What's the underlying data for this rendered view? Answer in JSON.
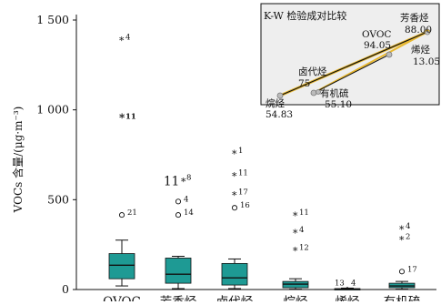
{
  "chart_data": {
    "type": "box",
    "ylabel": "VOCs 含量/(μg·m⁻³)",
    "yticks": [
      {
        "value": 0,
        "label": "0"
      },
      {
        "value": 500,
        "label": "500"
      },
      {
        "value": 1000,
        "label": "1 000"
      },
      {
        "value": 1500,
        "label": "1 500"
      }
    ],
    "ylim": [
      0,
      1500
    ],
    "box_color": "#1e9a94",
    "categories": [
      {
        "name": "OVOC",
        "whisker_low": 20,
        "q1": 60,
        "median": 135,
        "q3": 200,
        "whisker_high": 275,
        "outliers": [
          {
            "kind": "star",
            "value": 1390,
            "label": "4"
          },
          {
            "kind": "star",
            "value": 960,
            "label": "11",
            "bold": true
          },
          {
            "kind": "circle",
            "value": 415,
            "label": "21"
          }
        ]
      },
      {
        "name": "芳香烃",
        "whisker_low": 5,
        "q1": 35,
        "median": 85,
        "q3": 175,
        "whisker_high": 185,
        "outliers": [
          {
            "kind": "star",
            "value": 605,
            "label": "8",
            "prefix": "11"
          },
          {
            "kind": "circle",
            "value": 490,
            "label": "4"
          },
          {
            "kind": "circle",
            "value": 415,
            "label": "14"
          }
        ]
      },
      {
        "name": "卤代烃",
        "whisker_low": 5,
        "q1": 25,
        "median": 65,
        "q3": 145,
        "whisker_high": 170,
        "outliers": [
          {
            "kind": "star",
            "value": 760,
            "label": "1"
          },
          {
            "kind": "star",
            "value": 635,
            "label": "11"
          },
          {
            "kind": "star",
            "value": 530,
            "label": "17"
          },
          {
            "kind": "circle",
            "value": 455,
            "label": "16"
          }
        ]
      },
      {
        "name": "烷烃",
        "whisker_low": 2,
        "q1": 10,
        "median": 30,
        "q3": 45,
        "whisker_high": 60,
        "outliers": [
          {
            "kind": "star",
            "value": 415,
            "label": "11"
          },
          {
            "kind": "star",
            "value": 320,
            "label": "4"
          },
          {
            "kind": "star",
            "value": 220,
            "label": "12"
          }
        ]
      },
      {
        "name": "烯烃",
        "whisker_low": 0,
        "q1": 0,
        "median": 3,
        "q3": 5,
        "whisker_high": 8,
        "outliers": [
          {
            "kind": "star",
            "value": 2,
            "label": "13"
          },
          {
            "kind": "star",
            "value": 2,
            "label": "4"
          }
        ]
      },
      {
        "name": "有机硫",
        "whisker_low": 2,
        "q1": 10,
        "median": 20,
        "q3": 35,
        "whisker_high": 45,
        "outliers": [
          {
            "kind": "star",
            "value": 340,
            "label": "4"
          },
          {
            "kind": "star",
            "value": 280,
            "label": "2"
          },
          {
            "kind": "circle",
            "value": 100,
            "label": "17"
          }
        ]
      }
    ]
  },
  "inset": {
    "title": "K-W 检验成对比较",
    "line_colors": {
      "dark": "#111111",
      "light": "#e8b830"
    },
    "nodes": [
      {
        "name": "芳香烃",
        "value": "88.00"
      },
      {
        "name": "OVOC",
        "value": "94.05"
      },
      {
        "name": "烯烃",
        "value": "13.05"
      },
      {
        "name": "卤代烃",
        "value": "75"
      },
      {
        "name": "有机硫",
        "value": "55.10"
      },
      {
        "name": "烷烃",
        "value": "54.83"
      }
    ]
  }
}
